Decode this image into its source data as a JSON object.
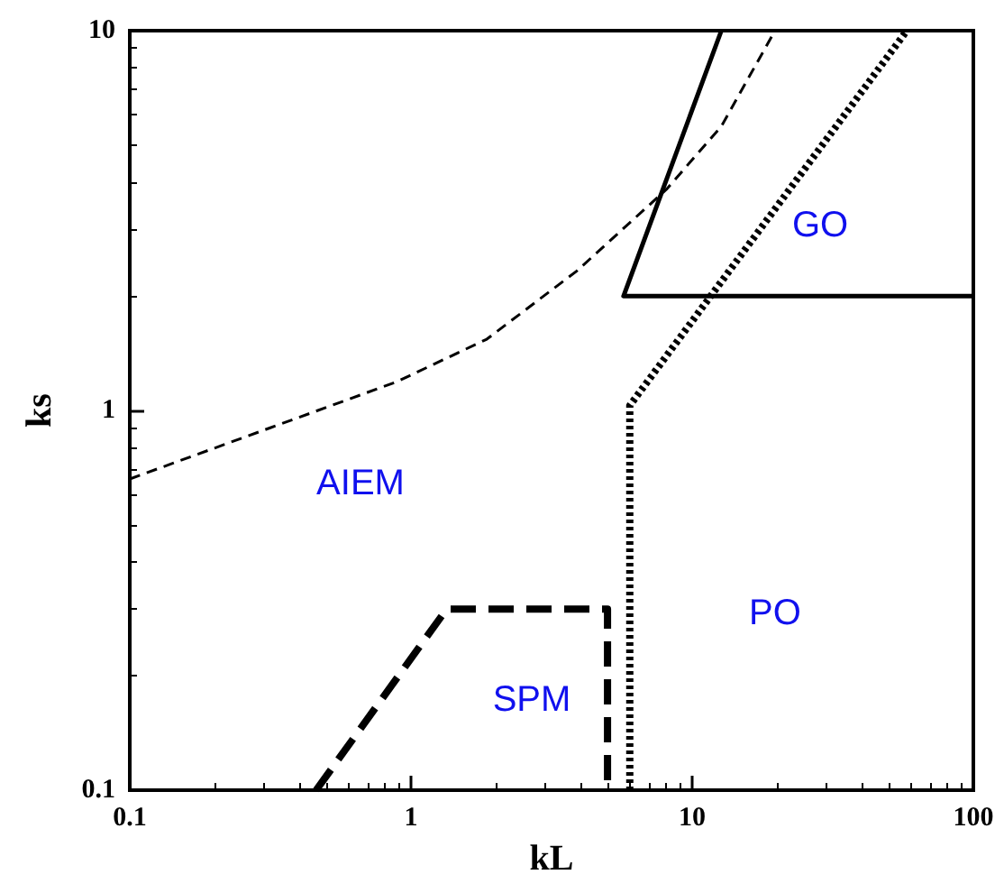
{
  "chart_data": {
    "type": "line",
    "xlabel": "kL",
    "ylabel": "ks",
    "log": "xy",
    "grid": false,
    "marker": "none",
    "xlim": [
      0.1,
      100
    ],
    "xticks": [
      0.1,
      1,
      10,
      100
    ],
    "ylim": [
      0.1,
      10
    ],
    "yticks": [
      0.1,
      1,
      10
    ],
    "series": [
      {
        "color": "#000000",
        "line_style": "solid",
        "x": [
          12.7,
          5.7,
          100
        ],
        "values": [
          10,
          2,
          2
        ]
      },
      {
        "color": "#000000",
        "line_style": "dashed",
        "x": [
          0.1,
          0.316,
          0.89,
          1.86,
          3.89,
          8.1,
          12.7,
          19.7
        ],
        "values": [
          0.66,
          0.9,
          1.19,
          1.54,
          2.33,
          3.82,
          5.6,
          10
        ]
      },
      {
        "color": "#000000",
        "line_style": "dotted",
        "x": [
          6,
          6,
          58
        ],
        "values": [
          0.1,
          1.03,
          10
        ]
      },
      {
        "color": "#000000",
        "line_style": "dashed",
        "x": [
          0.46,
          1.34,
          5.0,
          5.0
        ],
        "values": [
          0.1,
          0.3,
          0.3,
          0.1
        ]
      }
    ],
    "annotations": [
      "AIEM",
      "SPM",
      "PO",
      "GO"
    ]
  }
}
